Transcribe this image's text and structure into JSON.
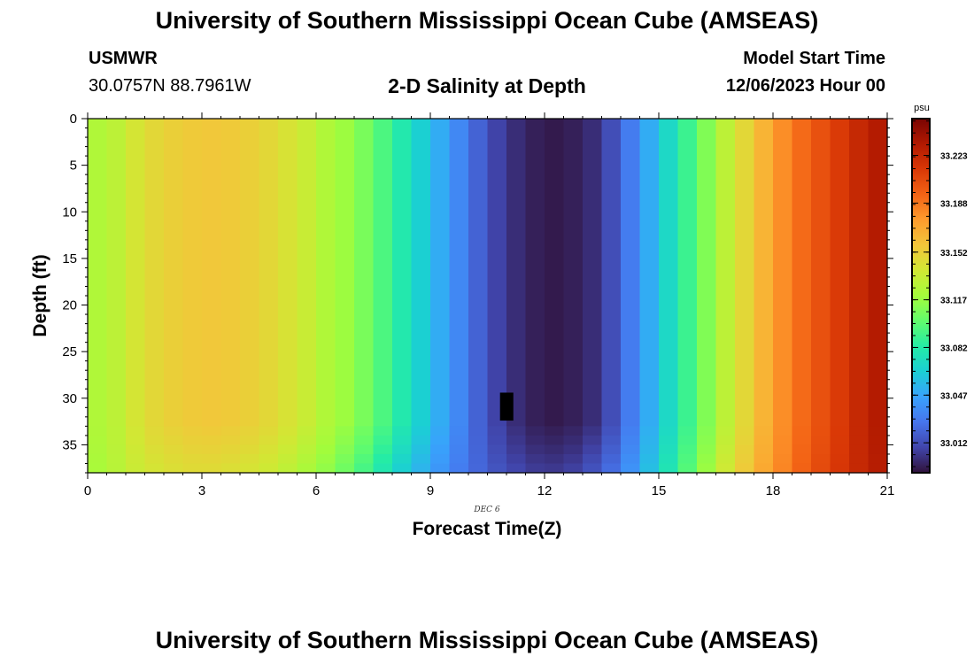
{
  "header": {
    "title": "University of Southern Mississippi Ocean Cube (AMSEAS)",
    "station_id": "USMWR",
    "coordinates": "30.0757N  88.7961W",
    "plot_title": "2-D Salinity at Depth",
    "model_start_label": "Model Start Time",
    "model_start_value": "12/06/2023 Hour 00"
  },
  "footer": {
    "title": "University of Southern Mississippi Ocean Cube (AMSEAS)"
  },
  "chart_data": {
    "type": "heatmap",
    "title": "2-D Salinity at Depth",
    "xlabel": "Forecast Time(Z)",
    "ylabel": "Depth (ft)",
    "date_label": "DEC 6",
    "xlim": [
      0,
      21
    ],
    "ylim": [
      0,
      38
    ],
    "x_ticks": [
      0,
      3,
      6,
      9,
      12,
      15,
      18,
      21
    ],
    "y_ticks": [
      0,
      5,
      10,
      15,
      20,
      25,
      30,
      35
    ],
    "time_step_hours": 0.5,
    "depth_bottom_ft": 38,
    "colorbar": {
      "unit": "psu",
      "range": [
        32.99,
        33.25
      ],
      "ticks": [
        "33.223",
        "33.188",
        "33.152",
        "33.117",
        "33.082",
        "33.047",
        "33.012"
      ],
      "colors": [
        "#30123b",
        "#4145ab",
        "#4675ed",
        "#39a2fc",
        "#1bcfd4",
        "#24eca6",
        "#61fc6c",
        "#a4fc3b",
        "#d1e834",
        "#f3c63a",
        "#fe9b2d",
        "#f36315",
        "#d93806",
        "#b11901",
        "#7a0402"
      ]
    },
    "surface_salinity_psu": [
      33.125,
      33.13,
      33.14,
      33.148,
      33.152,
      33.155,
      33.156,
      33.155,
      33.152,
      33.148,
      33.142,
      33.135,
      33.125,
      33.118,
      33.108,
      33.095,
      33.08,
      33.065,
      33.05,
      33.035,
      33.02,
      33.008,
      33.0,
      32.995,
      32.993,
      32.995,
      33.0,
      33.012,
      33.03,
      33.05,
      33.07,
      33.09,
      33.11,
      33.13,
      33.148,
      33.165,
      33.18,
      33.192,
      33.202,
      33.212,
      33.222,
      33.23,
      33.237,
      33.243
    ],
    "bottom_layer_salinity_psu": [
      33.122,
      33.128,
      33.135,
      33.14,
      33.143,
      33.145,
      33.145,
      33.143,
      33.14,
      33.136,
      33.13,
      33.122,
      33.114,
      33.104,
      33.092,
      33.078,
      33.064,
      33.052,
      33.04,
      33.03,
      33.022,
      33.015,
      33.01,
      33.006,
      33.005,
      33.008,
      33.015,
      33.025,
      33.04,
      33.058,
      33.078,
      33.098,
      33.118,
      33.138,
      33.155,
      33.17,
      33.183,
      33.195,
      33.205,
      33.214,
      33.222,
      33.229,
      33.235,
      33.24
    ],
    "missing_cell": {
      "time_hours": 11.0,
      "depth_ft": 31
    }
  }
}
